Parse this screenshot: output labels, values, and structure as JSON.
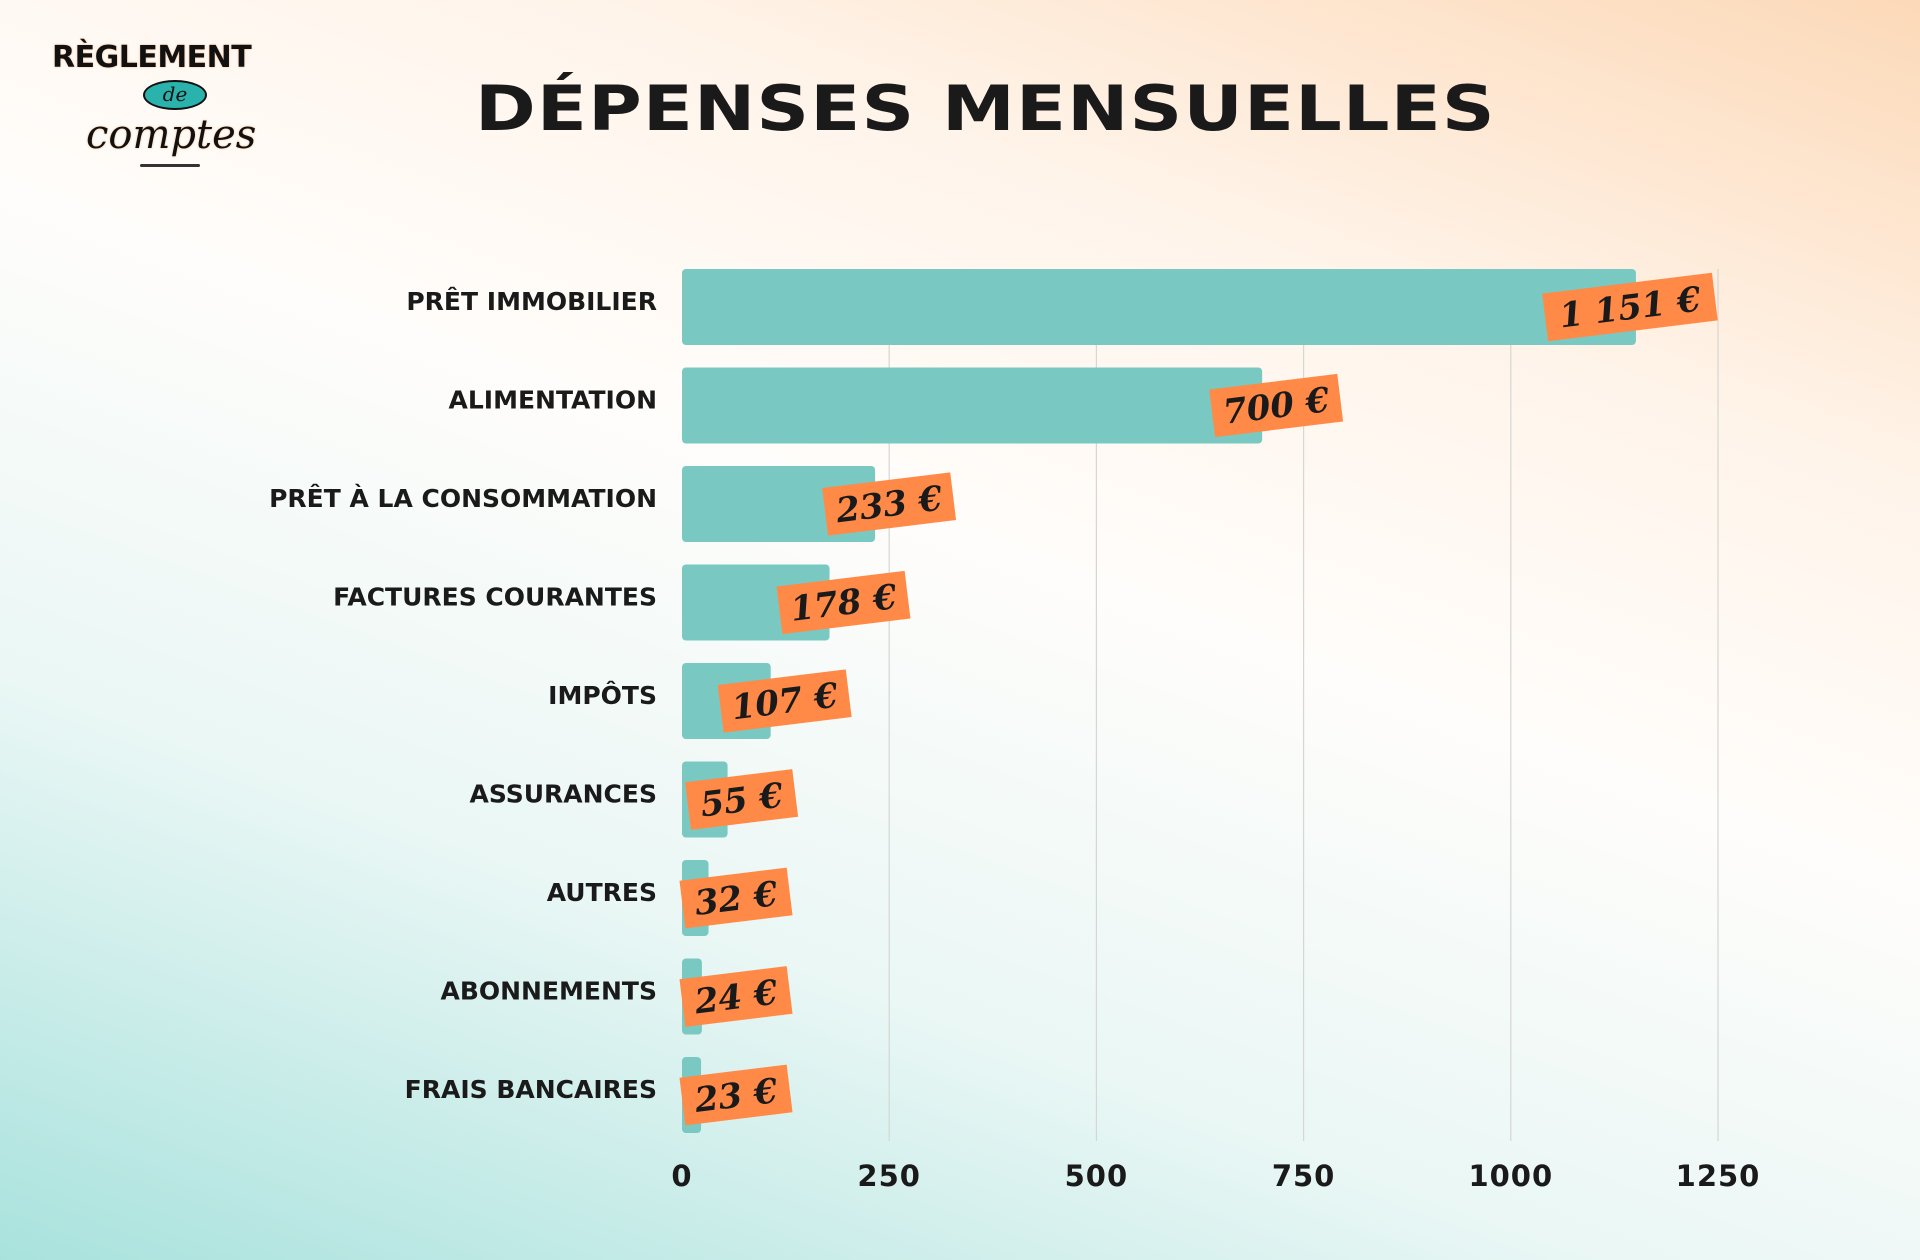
{
  "logo": {
    "line1": "RÈGLEMENT",
    "line2": "de",
    "line3": "comptes"
  },
  "title": "DÉPENSES MENSUELLES",
  "chart_data": {
    "type": "bar",
    "orientation": "horizontal",
    "title": "DÉPENSES MENSUELLES",
    "categories": [
      "PRÊT IMMOBILIER",
      "ALIMENTATION",
      "PRÊT À LA CONSOMMATION",
      "FACTURES COURANTES",
      "IMPÔTS",
      "ASSURANCES",
      "AUTRES",
      "ABONNEMENTS",
      "FRAIS BANCAIRES"
    ],
    "values": [
      1151,
      700,
      233,
      178,
      107,
      55,
      32,
      24,
      23
    ],
    "data_labels": [
      "1 151 €",
      "700 €",
      "233 €",
      "178 €",
      "107 €",
      "55 €",
      "32 €",
      "24 €",
      "23 €"
    ],
    "xlim": [
      0,
      1250
    ],
    "xticks": [
      "0",
      "250",
      "500",
      "750",
      "1000",
      "1250"
    ],
    "grid": true,
    "colors": {
      "bar": "#79c9c2",
      "label_bg": "#ff8a47"
    }
  }
}
